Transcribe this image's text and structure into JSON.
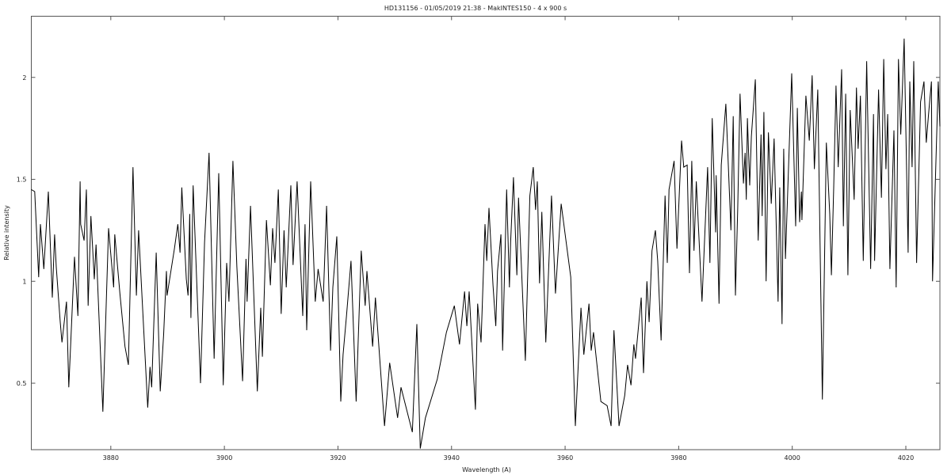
{
  "chart_data": {
    "type": "line",
    "title": "HD131156 - 01/05/2019 21:38 - MakINTES150 - 4 x 900 s",
    "xlabel": "Wavelength (A)",
    "ylabel": "Relative intensity",
    "xlim": [
      3866.0,
      4026.0
    ],
    "ylim": [
      0.174,
      2.3
    ],
    "xticks": [
      3880,
      3900,
      3920,
      3940,
      3960,
      3980,
      4000,
      4020
    ],
    "yticks": [
      0.5,
      1,
      1.5,
      2
    ],
    "ytick_labels": [
      "0.5",
      "1",
      "1.5",
      "2"
    ],
    "grid": false,
    "line_color": "#000000",
    "series": [
      {
        "wavelength": [
          3866.0,
          3866.6,
          3867.3,
          3867.6,
          3868.2,
          3869.0,
          3869.7,
          3870.1,
          3870.4,
          3871.1,
          3871.4,
          3872.2,
          3872.6,
          3873.6,
          3874.2,
          3874.6,
          3874.7,
          3875.3,
          3875.7,
          3876.0,
          3876.5,
          3877.1,
          3877.4,
          3878.6,
          3879.6,
          3880.5,
          3880.7,
          3881.6,
          3882.5,
          3883.1,
          3883.9,
          3884.5,
          3884.9,
          3886.5,
          3886.9,
          3887.2,
          3888.0,
          3888.7,
          3889.3,
          3889.8,
          3889.9,
          3891.2,
          3891.8,
          3892.2,
          3892.5,
          3893.3,
          3893.6,
          3893.9,
          3894.1,
          3894.5,
          3895.8,
          3896.5,
          3897.3,
          3898.2,
          3899.0,
          3899.8,
          3900.4,
          3900.8,
          3901.5,
          3902.2,
          3903.2,
          3903.8,
          3904.0,
          3904.6,
          3905.8,
          3906.4,
          3906.7,
          3907.4,
          3908.1,
          3908.5,
          3908.9,
          3909.5,
          3910.0,
          3910.5,
          3910.9,
          3911.7,
          3912.1,
          3912.8,
          3913.8,
          3914.2,
          3914.5,
          3915.2,
          3916.0,
          3916.5,
          3917.4,
          3918.0,
          3918.7,
          3919.1,
          3919.8,
          3920.5,
          3920.9,
          3921.5,
          3922.3,
          3923.2,
          3924.1,
          3924.8,
          3925.1,
          3926.1,
          3926.6,
          3928.2,
          3929.1,
          3930.5,
          3931.1,
          3933.1,
          3933.9,
          3934.5,
          3935.4,
          3937.5,
          3939.1,
          3940.5,
          3941.4,
          3942.3,
          3942.7,
          3943.1,
          3944.2,
          3944.6,
          3945.2,
          3945.9,
          3946.2,
          3946.6,
          3947.3,
          3947.8,
          3948.1,
          3948.7,
          3949.0,
          3949.7,
          3950.2,
          3950.4,
          3950.9,
          3951.5,
          3951.8,
          3953.0,
          3953.8,
          3954.4,
          3954.8,
          3955.1,
          3955.5,
          3955.9,
          3956.6,
          3957.6,
          3958.3,
          3959.3,
          3960.1,
          3961.0,
          3961.8,
          3962.8,
          3963.3,
          3964.2,
          3964.6,
          3965.0,
          3966.3,
          3967.4,
          3968.1,
          3968.6,
          3969.5,
          3970.5,
          3971.0,
          3971.6,
          3972.1,
          3972.4,
          3973.4,
          3973.8,
          3974.4,
          3974.8,
          3975.3,
          3975.9,
          3976.3,
          3976.9,
          3977.6,
          3978.0,
          3978.3,
          3979.2,
          3979.7,
          3980.5,
          3980.9,
          3981.5,
          3981.9,
          3982.3,
          3982.7,
          3983.1,
          3984.1,
          3985.1,
          3985.5,
          3985.9,
          3986.5,
          3986.6,
          3987.1,
          3987.5,
          3988.3,
          3989.2,
          3989.6,
          3990.0,
          3990.4,
          3990.8,
          3991.4,
          3991.7,
          3991.9,
          3992.1,
          3992.5,
          3992.8,
          3993.5,
          3994.0,
          3994.5,
          3994.7,
          3995.0,
          3995.4,
          3995.8,
          3996.3,
          3996.8,
          3997.5,
          3997.8,
          3998.2,
          3998.5,
          3998.8,
          3999.9,
          4000.6,
          4000.9,
          4001.3,
          4001.6,
          4001.7,
          4002.4,
          4003.0,
          4003.5,
          4003.9,
          4004.5,
          4005.3,
          4006.0,
          4006.6,
          4006.9,
          4007.3,
          4007.7,
          4008.1,
          4008.7,
          4009.0,
          4009.4,
          4009.8,
          4010.2,
          4010.9,
          4011.3,
          4011.6,
          4012.0,
          4012.5,
          4013.1,
          4013.8,
          4014.3,
          4014.5,
          4015.2,
          4015.7,
          4016.1,
          4016.5,
          4016.8,
          4017.2,
          4017.9,
          4018.3,
          4018.7,
          4019.1,
          4019.7,
          4020.4,
          4020.7,
          4021.1,
          4021.4,
          4021.9,
          4022.6,
          4023.2,
          4023.6,
          4024.0,
          4024.5,
          4024.7,
          4025.3,
          4025.7,
          4026.0
        ],
        "intensity": [
          1.45,
          1.44,
          1.02,
          1.28,
          1.06,
          1.44,
          0.92,
          1.23,
          1.07,
          0.8,
          0.7,
          0.9,
          0.48,
          1.12,
          0.83,
          1.49,
          1.28,
          1.2,
          1.45,
          0.88,
          1.32,
          1.01,
          1.18,
          0.36,
          1.26,
          0.97,
          1.23,
          0.94,
          0.68,
          0.59,
          1.56,
          0.93,
          1.25,
          0.38,
          0.58,
          0.48,
          1.14,
          0.46,
          0.74,
          1.05,
          0.93,
          1.16,
          1.28,
          1.14,
          1.46,
          1.01,
          0.93,
          1.33,
          0.82,
          1.47,
          0.5,
          1.19,
          1.63,
          0.62,
          1.53,
          0.49,
          1.09,
          0.9,
          1.59,
          1.07,
          0.51,
          1.11,
          0.9,
          1.37,
          0.46,
          0.87,
          0.63,
          1.3,
          0.98,
          1.26,
          1.09,
          1.45,
          0.84,
          1.25,
          0.97,
          1.47,
          1.08,
          1.49,
          0.83,
          1.28,
          0.76,
          1.49,
          0.9,
          1.06,
          0.9,
          1.37,
          0.66,
          0.97,
          1.22,
          0.41,
          0.64,
          0.83,
          1.1,
          0.41,
          1.15,
          0.88,
          1.05,
          0.68,
          0.92,
          0.29,
          0.6,
          0.33,
          0.48,
          0.26,
          0.79,
          0.18,
          0.33,
          0.52,
          0.75,
          0.88,
          0.69,
          0.95,
          0.78,
          0.95,
          0.37,
          0.89,
          0.7,
          1.28,
          1.1,
          1.36,
          0.98,
          0.78,
          1.05,
          1.23,
          0.66,
          1.45,
          0.97,
          1.19,
          1.51,
          1.03,
          1.41,
          0.61,
          1.42,
          1.56,
          1.35,
          1.49,
          0.99,
          1.34,
          0.7,
          1.42,
          0.94,
          1.38,
          1.21,
          1.02,
          0.29,
          0.87,
          0.64,
          0.89,
          0.66,
          0.75,
          0.41,
          0.39,
          0.29,
          0.76,
          0.29,
          0.44,
          0.59,
          0.49,
          0.69,
          0.62,
          0.92,
          0.55,
          1.0,
          0.8,
          1.15,
          1.25,
          1.1,
          0.71,
          1.42,
          1.09,
          1.45,
          1.59,
          1.16,
          1.69,
          1.56,
          1.57,
          1.04,
          1.59,
          1.15,
          1.49,
          0.9,
          1.56,
          1.09,
          1.8,
          1.24,
          1.52,
          0.89,
          1.57,
          1.87,
          1.25,
          1.81,
          0.93,
          1.36,
          1.92,
          1.48,
          1.63,
          1.4,
          1.8,
          1.47,
          1.71,
          1.99,
          1.2,
          1.72,
          1.32,
          1.83,
          1.0,
          1.73,
          1.38,
          1.7,
          0.9,
          1.46,
          0.79,
          1.65,
          1.11,
          2.02,
          1.27,
          1.85,
          1.29,
          1.44,
          1.3,
          1.91,
          1.69,
          2.01,
          1.55,
          1.94,
          0.42,
          1.68,
          1.33,
          1.03,
          1.46,
          1.96,
          1.56,
          2.04,
          1.27,
          1.92,
          1.03,
          1.84,
          1.4,
          1.95,
          1.65,
          1.91,
          1.1,
          2.08,
          1.06,
          1.82,
          1.1,
          1.94,
          1.41,
          2.09,
          1.55,
          1.82,
          1.06,
          1.74,
          0.97,
          2.09,
          1.72,
          2.19,
          1.14,
          1.98,
          1.56,
          2.08,
          1.09,
          1.88,
          1.98,
          1.68,
          1.82,
          1.98,
          1.0,
          1.59,
          1.98,
          1.76
        ]
      }
    ]
  }
}
